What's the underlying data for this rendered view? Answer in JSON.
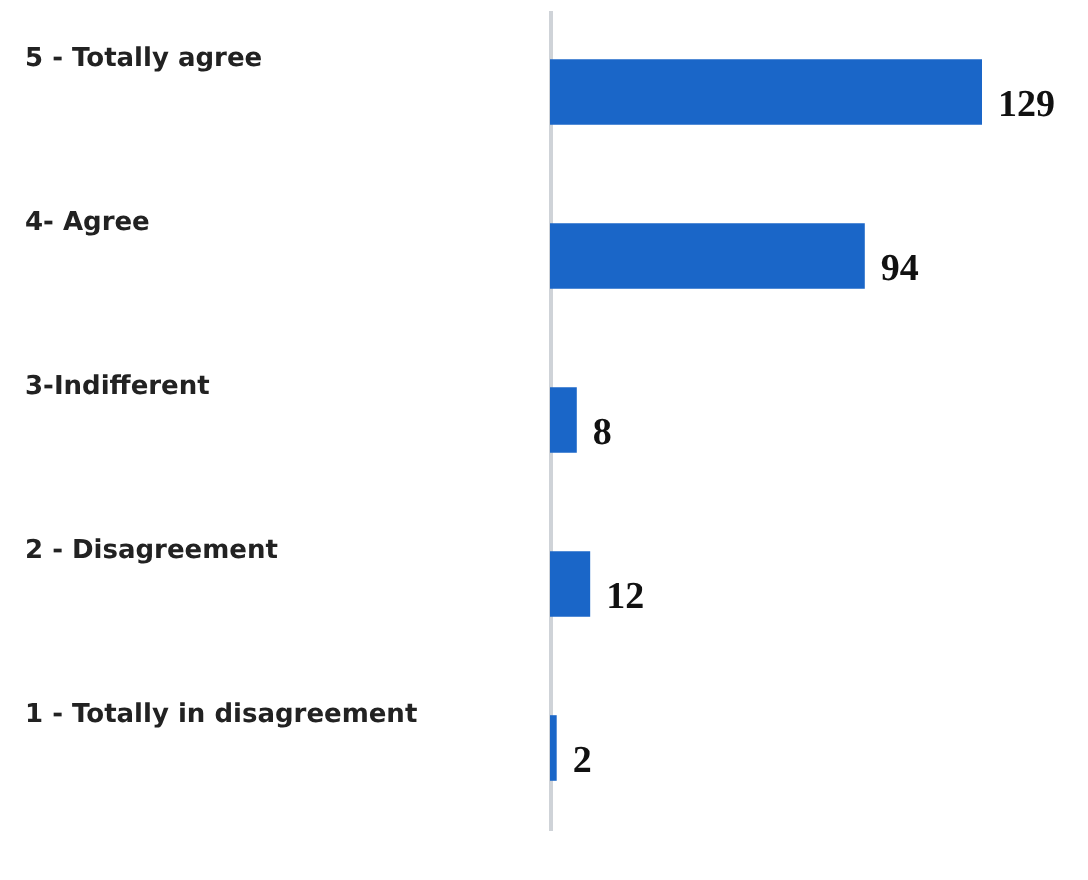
{
  "chart_data": {
    "type": "bar",
    "orientation": "horizontal",
    "categories": [
      "5 - Totally agree",
      "4- Agree",
      "3-Indifferent",
      "2 - Disagreement",
      "1 - Totally in disagreement"
    ],
    "values": [
      129,
      94,
      8,
      12,
      2
    ],
    "color": "#1a66c8",
    "data_labels": true
  }
}
